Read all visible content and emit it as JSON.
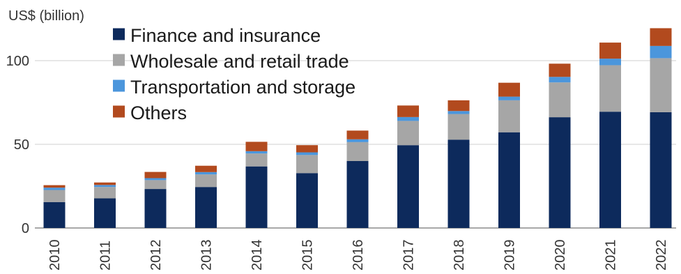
{
  "chart_data": {
    "type": "bar",
    "stacked": true,
    "ylabel": "US$ (billion)",
    "ylim": [
      0,
      125
    ],
    "yticks": [
      0,
      50,
      100
    ],
    "grid": true,
    "legend_position": "top-left",
    "categories": [
      "2010",
      "2011",
      "2012",
      "2013",
      "2014",
      "2015",
      "2016",
      "2017",
      "2018",
      "2019",
      "2020",
      "2021",
      "2022"
    ],
    "series": [
      {
        "name": "Finance and insurance",
        "color": "#0d2a5c",
        "values": [
          15.5,
          17.7,
          23.3,
          24.5,
          36.8,
          32.8,
          40,
          49.5,
          52.8,
          57.2,
          66.2,
          69.5,
          69.2
        ]
      },
      {
        "name": "Wholesale and retail trade",
        "color": "#a6a6a6",
        "values": [
          7.2,
          6.8,
          5.3,
          7.5,
          7.7,
          10.8,
          11.3,
          14.5,
          15.3,
          19.1,
          20.8,
          27.8,
          32.3
        ]
      },
      {
        "name": "Transportation and storage",
        "color": "#4b96dc",
        "values": [
          1.4,
          1.2,
          1.2,
          1.4,
          1.4,
          1.6,
          1.7,
          2.3,
          1.8,
          2.2,
          3.3,
          3.9,
          7.3
        ]
      },
      {
        "name": "Others",
        "color": "#b24a1e",
        "values": [
          1.5,
          1.5,
          3.7,
          3.8,
          5.6,
          4.3,
          5.2,
          6.9,
          6.4,
          8.3,
          7.9,
          9.6,
          10.6
        ]
      }
    ]
  }
}
